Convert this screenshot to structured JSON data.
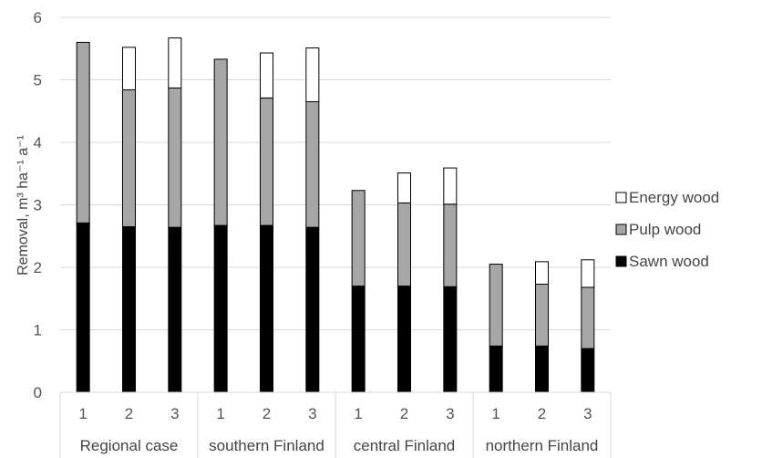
{
  "chart_data": {
    "type": "bar",
    "stacked": true,
    "ylabel": "Removal, m³ ha⁻¹ a⁻¹",
    "ylim": [
      0,
      6
    ],
    "yticks": [
      0,
      1,
      2,
      3,
      4,
      5,
      6
    ],
    "grid": true,
    "legend_position": "right",
    "groups": [
      {
        "label": "Regional case",
        "categories": [
          "1",
          "2",
          "3"
        ]
      },
      {
        "label": "southern Finland",
        "categories": [
          "1",
          "2",
          "3"
        ]
      },
      {
        "label": "central Finland",
        "categories": [
          "1",
          "2",
          "3"
        ]
      },
      {
        "label": "northern Finland",
        "categories": [
          "1",
          "2",
          "3"
        ]
      }
    ],
    "series": [
      {
        "name": "Sawn wood",
        "color": "#000000",
        "values": [
          2.71,
          2.65,
          2.64,
          2.67,
          2.67,
          2.64,
          1.7,
          1.7,
          1.69,
          0.74,
          0.74,
          0.7
        ]
      },
      {
        "name": "Pulp wood",
        "color": "#a6a6a6",
        "values": [
          2.89,
          2.19,
          2.23,
          2.66,
          2.04,
          2.01,
          1.53,
          1.33,
          1.32,
          1.31,
          0.99,
          0.98
        ]
      },
      {
        "name": "Energy wood",
        "color": "#ffffff",
        "values": [
          0.0,
          0.68,
          0.8,
          0.0,
          0.72,
          0.86,
          0.0,
          0.48,
          0.58,
          0.0,
          0.36,
          0.44
        ]
      }
    ],
    "legend_order": [
      "Energy wood",
      "Pulp wood",
      "Sawn wood"
    ]
  }
}
